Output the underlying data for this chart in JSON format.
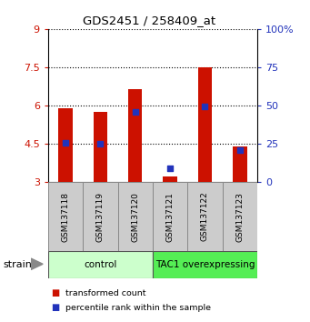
{
  "title": "GDS2451 / 258409_at",
  "samples": [
    "GSM137118",
    "GSM137119",
    "GSM137120",
    "GSM137121",
    "GSM137122",
    "GSM137123"
  ],
  "red_values": [
    5.9,
    5.75,
    6.65,
    3.2,
    7.5,
    4.4
  ],
  "blue_values": [
    4.55,
    4.5,
    5.75,
    3.55,
    5.95,
    4.25
  ],
  "y_min": 3,
  "y_max": 9,
  "y_ticks": [
    3,
    4.5,
    6,
    7.5,
    9
  ],
  "y_tick_labels": [
    "3",
    "4.5",
    "6",
    "7.5",
    "9"
  ],
  "y_right_ticks_pct": [
    0,
    25,
    50,
    75,
    100
  ],
  "y_right_tick_labels": [
    "0",
    "25",
    "50",
    "75",
    "100%"
  ],
  "groups": [
    {
      "label": "control",
      "start": 0,
      "end": 3,
      "color": "#ccffcc"
    },
    {
      "label": "TAC1 overexpressing",
      "start": 3,
      "end": 6,
      "color": "#55ee55"
    }
  ],
  "bar_color": "#cc1100",
  "dot_color": "#2233bb",
  "bar_width": 0.4,
  "dot_size": 25,
  "tick_label_color_left": "#cc1100",
  "tick_label_color_right": "#2233bb",
  "strain_label": "strain",
  "legend_items": [
    {
      "label": "transformed count",
      "color": "#cc1100"
    },
    {
      "label": "percentile rank within the sample",
      "color": "#2233bb"
    }
  ],
  "sample_box_color": "#cccccc",
  "sample_box_edge": "#888888"
}
